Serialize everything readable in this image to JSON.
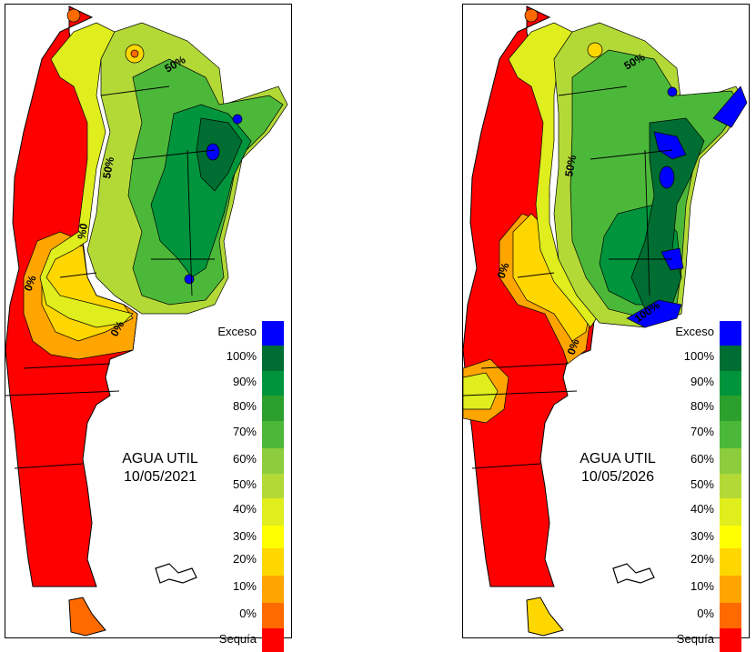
{
  "maps": [
    {
      "title_line1": "AGUA UTIL",
      "date": "10/05/2021",
      "contour_labels": [
        "50%",
        "50%",
        "0%",
        "0%",
        "0%"
      ]
    },
    {
      "title_line1": "AGUA UTIL",
      "date": "10/05/2026",
      "contour_labels": [
        "50%",
        "50%",
        "0%",
        "0%",
        "100%"
      ]
    }
  ],
  "legend": {
    "items": [
      {
        "label": "Exceso",
        "color": "#0000ff"
      },
      {
        "label": "100%",
        "color": "#006e32"
      },
      {
        "label": "90%",
        "color": "#00953c"
      },
      {
        "label": "80%",
        "color": "#2ca02c"
      },
      {
        "label": "70%",
        "color": "#4cb83a"
      },
      {
        "label": "60%",
        "color": "#8dcc3d"
      },
      {
        "label": "50%",
        "color": "#b3d937"
      },
      {
        "label": "40%",
        "color": "#dfee1c"
      },
      {
        "label": "30%",
        "color": "#ffff00"
      },
      {
        "label": "20%",
        "color": "#ffd700"
      },
      {
        "label": "10%",
        "color": "#ffa500"
      },
      {
        "label": "0%",
        "color": "#ff6a00"
      },
      {
        "label": "Sequía",
        "color": "#ff0000"
      }
    ]
  }
}
